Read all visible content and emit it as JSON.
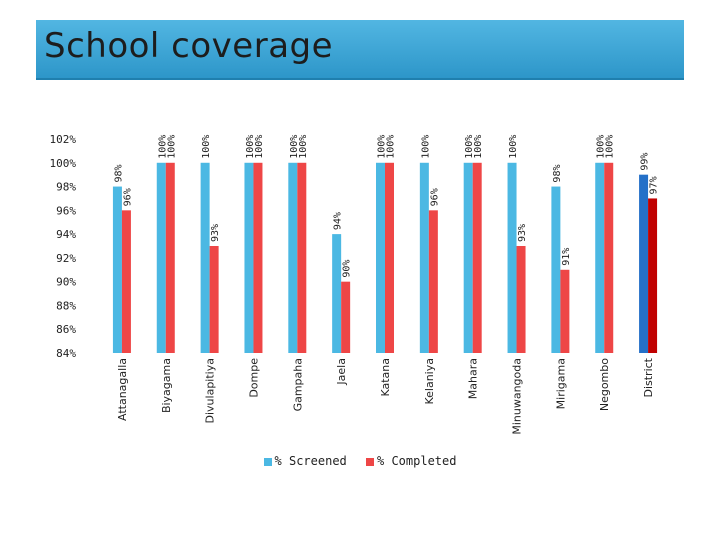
{
  "title": "School coverage",
  "chart_data": {
    "type": "bar",
    "categories": [
      "Attanagalla",
      "Biyagama",
      "Divulapitiya",
      "Dompe",
      "Gampaha",
      "Jaela",
      "Katana",
      "Kelaniya",
      "Mahara",
      "Minuwangoda",
      "Mirigama",
      "Negombo",
      "District"
    ],
    "series": [
      {
        "name": "% Screened",
        "values": [
          98,
          100,
          100,
          100,
          100,
          94,
          100,
          100,
          100,
          100,
          98,
          100,
          99
        ],
        "color": "#4bb8e3"
      },
      {
        "name": "% Completed",
        "values": [
          96,
          100,
          93,
          100,
          100,
          90,
          100,
          96,
          100,
          93,
          91,
          100,
          97
        ],
        "color": "#ee4646"
      }
    ],
    "highlight_colors": {
      "District": [
        "#2470c8",
        "#c00000"
      ]
    },
    "value_labels": [
      [
        "98%",
        "100%",
        "100%",
        "100%",
        "100%",
        "94%",
        "100%",
        "100%",
        "100%",
        "100%",
        "98%",
        "100%",
        "99%"
      ],
      [
        "96%",
        "100%",
        "93%",
        "100%",
        "100%",
        "90%",
        "100%",
        "96%",
        "100%",
        "93%",
        "91%",
        "100%",
        "97%"
      ]
    ],
    "yticks": [
      "102%",
      "100%",
      "98%",
      "96%",
      "94%",
      "92%",
      "90%",
      "88%",
      "86%",
      "84%"
    ],
    "ylim": [
      84,
      102
    ],
    "grid": false,
    "legend": "bottom"
  }
}
